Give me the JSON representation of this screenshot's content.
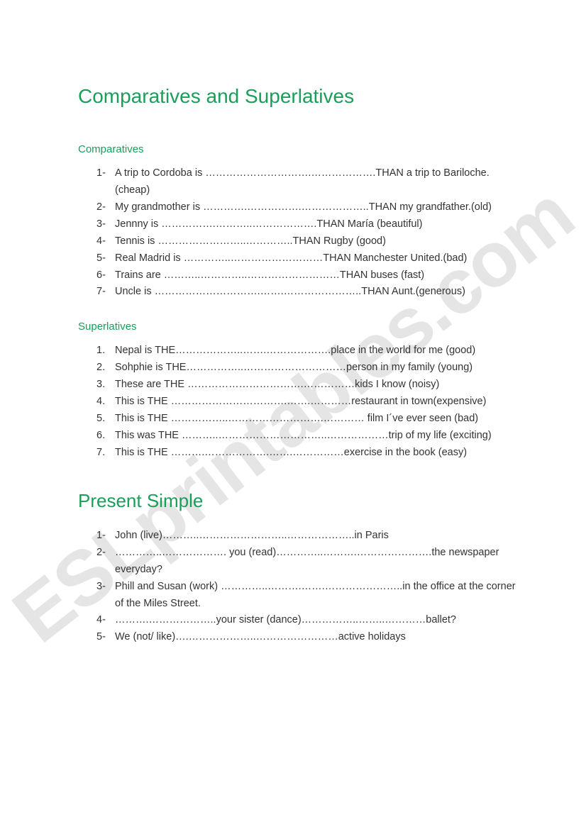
{
  "watermark": "ESLprintables.com",
  "title": "Comparatives and Superlatives",
  "sections": [
    {
      "heading": "Comparatives",
      "heading_class": "sub-title",
      "num_style": "dash",
      "items": [
        "A trip to Cordoba is ………………………….……………….THAN  a trip to Bariloche. (cheap)",
        "My grandmother is ………….…………….………………..THAN my grandfather.(old)",
        "Jennny is …………….………..……………….THAN María (beautiful)",
        "Tennis is ……………………..…………..THAN Rugby (good)",
        "Real Madrid  is …………..………………………THAN Manchester United.(bad)",
        "Trains are ………..…………..………………………THAN buses (fast)",
        "Uncle is ………………………….…….…………………..THAN Aunt.(generous)"
      ]
    },
    {
      "heading": "Superlatives",
      "heading_class": "sub-title",
      "num_style": "dot",
      "items": [
        "Nepal is THE………………..…….……………….place in the world for me (good)",
        "Sohphie is THE……………..…………………………person in my family (young)",
        "These are THE …………………………….……………kids I know (noisy)",
        "This is THE …………………………….…….…………restaurant in town(expensive)",
        "This is THE ……………..……………………….………… film I´ve ever seen (bad)",
        "This was THE ………..…………………………..………………trip of my life (exciting)",
        "This is  THE ……….……………….…….……………exercise in the book (easy)"
      ]
    },
    {
      "heading": "Present Simple",
      "heading_class": "section-title",
      "num_style": "dash",
      "items": [
        "John  (live)………..……………………..………………..in Paris",
        "…………..………………. you (read)…………..……….………………….the newspaper everyday?",
        "Phill and Susan (work) …………..……….…….…………………..in the office at the corner of the Miles Street.",
        "……….………………..your sister (dance)……………..……..…………ballet?",
        "We (not/ like)….………………..……………………active holidays"
      ]
    }
  ]
}
